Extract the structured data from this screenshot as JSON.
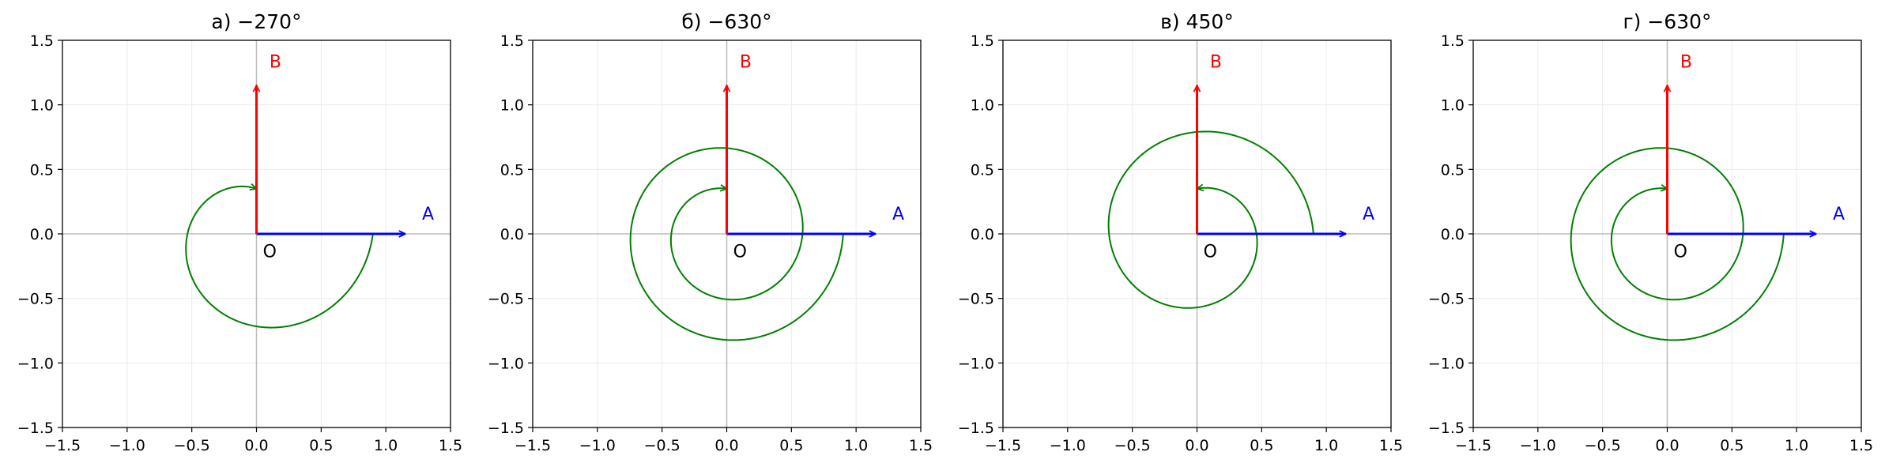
{
  "axis": {
    "xlim": [
      -1.5,
      1.5
    ],
    "ylim": [
      -1.5,
      1.5
    ],
    "ticks": [
      -1.5,
      -1.0,
      -0.5,
      0.0,
      0.5,
      1.0,
      1.5
    ],
    "tick_labels": [
      "−1.5",
      "−1.0",
      "−0.5",
      "0.0",
      "0.5",
      "1.0",
      "1.5"
    ],
    "grid": true
  },
  "points": {
    "A": {
      "label": "A",
      "color": "#0000ff",
      "tip": [
        1.15,
        0.0
      ]
    },
    "B": {
      "label": "B",
      "color": "#ff0000",
      "tip": [
        0.0,
        1.15
      ]
    },
    "O": {
      "label": "O"
    }
  },
  "arc_color": "#008000",
  "panels": [
    {
      "title": "а) −270°",
      "angle": -270
    },
    {
      "title": "б) −630°",
      "angle": -630
    },
    {
      "title": "в) 450°",
      "angle": 450
    },
    {
      "title": "г) −630°",
      "angle": -630
    }
  ]
}
